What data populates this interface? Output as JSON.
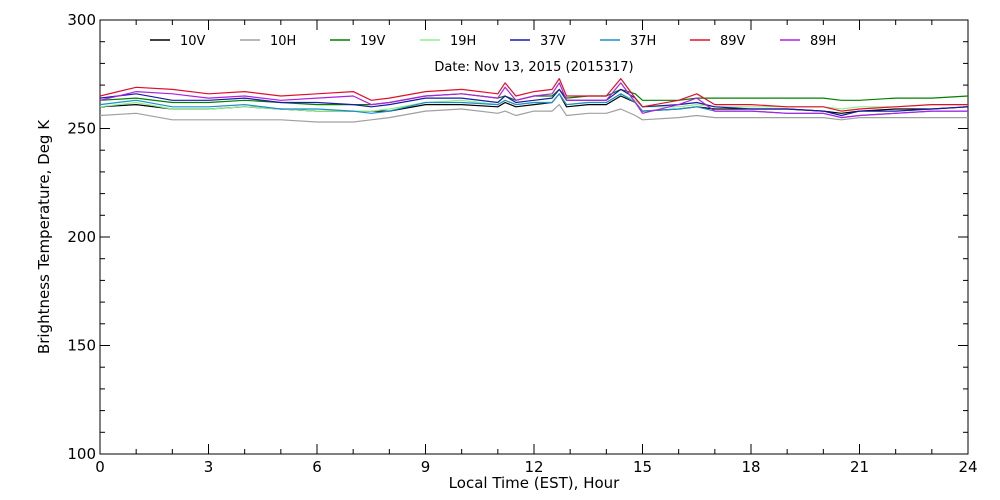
{
  "chart_data": {
    "type": "line",
    "title": "",
    "annotation": "Date: Nov 13, 2015 (2015317)",
    "xlabel": "Local Time (EST), Hour",
    "ylabel": "Brightness Temperature, Deg K",
    "xlim": [
      0,
      24
    ],
    "ylim": [
      100,
      300
    ],
    "xticks": [
      0,
      3,
      6,
      9,
      12,
      15,
      18,
      21,
      24
    ],
    "yticks": [
      100,
      150,
      200,
      250,
      300
    ],
    "grid": false,
    "legend_position": "top",
    "x": [
      0,
      1,
      2,
      3,
      4,
      5,
      6,
      7,
      7.5,
      8,
      9,
      10,
      11,
      11.2,
      11.5,
      12,
      12.5,
      12.7,
      12.9,
      13.5,
      14,
      14.4,
      14.8,
      15,
      16,
      16.5,
      17,
      18,
      19,
      20,
      20.5,
      21,
      22,
      23,
      24
    ],
    "series": [
      {
        "name": "10V",
        "color": "#000000",
        "values": [
          260,
          261,
          259,
          259,
          260,
          259,
          258,
          258,
          258,
          258,
          261,
          261,
          260,
          262,
          260,
          261,
          262,
          266,
          260,
          261,
          261,
          265,
          262,
          258,
          259,
          260,
          259,
          259,
          259,
          258,
          257,
          258,
          259,
          259,
          260
        ]
      },
      {
        "name": "10H",
        "color": "#a0a0a0",
        "values": [
          256,
          257,
          254,
          254,
          254,
          254,
          253,
          253,
          254,
          255,
          258,
          259,
          257,
          258,
          256,
          258,
          258,
          261,
          256,
          257,
          257,
          259,
          256,
          254,
          255,
          256,
          255,
          255,
          255,
          255,
          254,
          255,
          255,
          255,
          255
        ]
      },
      {
        "name": "19V",
        "color": "#008000",
        "values": [
          263,
          264,
          262,
          262,
          263,
          262,
          261,
          261,
          261,
          262,
          265,
          266,
          264,
          265,
          263,
          265,
          265,
          268,
          264,
          265,
          265,
          268,
          266,
          263,
          263,
          264,
          264,
          264,
          264,
          264,
          263,
          263,
          264,
          264,
          265
        ]
      },
      {
        "name": "19H",
        "color": "#90ee90",
        "values": [
          260,
          262,
          259,
          259,
          260,
          259,
          258,
          258,
          258,
          259,
          262,
          263,
          261,
          263,
          261,
          262,
          262,
          266,
          261,
          262,
          262,
          266,
          263,
          260,
          260,
          261,
          260,
          260,
          260,
          260,
          259,
          260,
          260,
          261,
          261
        ]
      },
      {
        "name": "37V",
        "color": "#1a1aa6",
        "values": [
          264,
          266,
          263,
          263,
          264,
          262,
          262,
          261,
          260,
          261,
          264,
          264,
          262,
          265,
          262,
          263,
          264,
          268,
          263,
          263,
          263,
          268,
          264,
          260,
          261,
          262,
          260,
          259,
          259,
          258,
          256,
          258,
          258,
          259,
          260
        ]
      },
      {
        "name": "37H",
        "color": "#1e90c8",
        "values": [
          261,
          263,
          260,
          260,
          261,
          259,
          259,
          258,
          257,
          258,
          262,
          262,
          261,
          263,
          261,
          262,
          262,
          266,
          261,
          262,
          262,
          266,
          262,
          258,
          259,
          260,
          258,
          258,
          257,
          257,
          255,
          256,
          257,
          258,
          258
        ]
      },
      {
        "name": "89V",
        "color": "#e0102a",
        "values": [
          265,
          269,
          268,
          266,
          267,
          265,
          266,
          267,
          263,
          264,
          267,
          268,
          266,
          271,
          265,
          267,
          268,
          273,
          265,
          265,
          265,
          273,
          264,
          260,
          263,
          266,
          261,
          261,
          260,
          260,
          258,
          259,
          260,
          261,
          261
        ]
      },
      {
        "name": "89H",
        "color": "#b020e0",
        "values": [
          263,
          267,
          266,
          264,
          265,
          263,
          264,
          265,
          261,
          262,
          265,
          266,
          264,
          269,
          263,
          265,
          266,
          271,
          263,
          263,
          263,
          271,
          262,
          257,
          261,
          264,
          258,
          258,
          257,
          257,
          255,
          256,
          257,
          258,
          258
        ]
      }
    ]
  }
}
